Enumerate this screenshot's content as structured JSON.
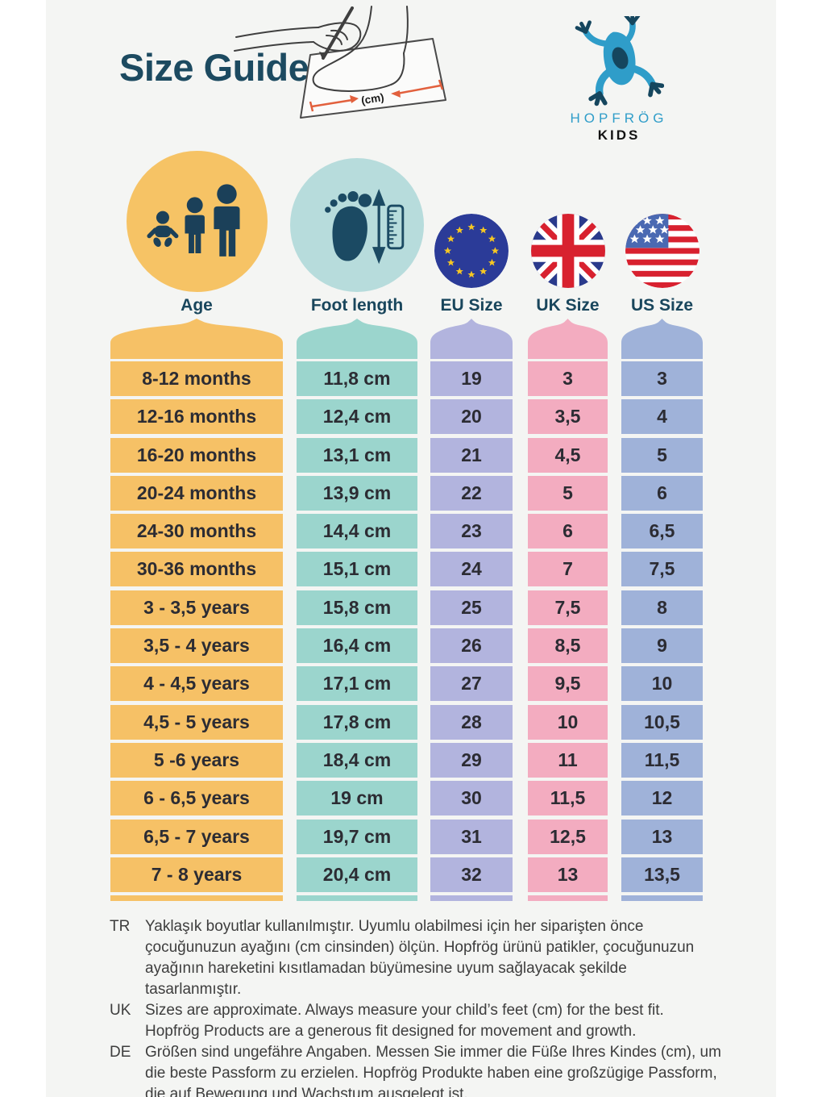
{
  "title": "Size Guide",
  "logo": {
    "brand": "HOPFRÖG",
    "sub": "KIDS"
  },
  "illustration": {
    "cm_label": "(cm)",
    "description": "hand drawing around a foot on paper to measure length in cm"
  },
  "theme": {
    "background": "#F4F5F3",
    "title_color": "#1C4A60",
    "label_color": "#19465C",
    "cell_text_color": "#2C2C33",
    "brand_blue": "#2F9DC9",
    "icon_dark": "#1B4059",
    "measure_arrow_orange": "#E2603D"
  },
  "columns": [
    {
      "key": "age",
      "label": "Age",
      "icon": "family-icon",
      "color": "#F6C166",
      "circle_color": "#F6C365"
    },
    {
      "key": "foot",
      "label": "Foot length",
      "icon": "foot-length-icon",
      "color": "#9BD5CD",
      "circle_color": "#B7DCDC"
    },
    {
      "key": "eu",
      "label": "EU Size",
      "icon": "eu-flag-icon",
      "color": "#B2B4DE"
    },
    {
      "key": "uk",
      "label": "UK Size",
      "icon": "uk-flag-icon",
      "color": "#F3ACC0"
    },
    {
      "key": "us",
      "label": "US Size",
      "icon": "us-flag-icon",
      "color": "#9FB2D9"
    }
  ],
  "rows": [
    {
      "age": "8-12 months",
      "foot": "11,8 cm",
      "eu": "19",
      "uk": "3",
      "us": "3"
    },
    {
      "age": "12-16 months",
      "foot": "12,4 cm",
      "eu": "20",
      "uk": "3,5",
      "us": "4"
    },
    {
      "age": "16-20 months",
      "foot": "13,1 cm",
      "eu": "21",
      "uk": "4,5",
      "us": "5"
    },
    {
      "age": "20-24 months",
      "foot": "13,9 cm",
      "eu": "22",
      "uk": "5",
      "us": "6"
    },
    {
      "age": "24-30 months",
      "foot": "14,4 cm",
      "eu": "23",
      "uk": "6",
      "us": "6,5"
    },
    {
      "age": "30-36 months",
      "foot": "15,1 cm",
      "eu": "24",
      "uk": "7",
      "us": "7,5"
    },
    {
      "age": "3 - 3,5 years",
      "foot": "15,8 cm",
      "eu": "25",
      "uk": "7,5",
      "us": "8"
    },
    {
      "age": "3,5 - 4 years",
      "foot": "16,4 cm",
      "eu": "26",
      "uk": "8,5",
      "us": "9"
    },
    {
      "age": "4 - 4,5 years",
      "foot": "17,1 cm",
      "eu": "27",
      "uk": "9,5",
      "us": "10"
    },
    {
      "age": "4,5 - 5 years",
      "foot": "17,8 cm",
      "eu": "28",
      "uk": "10",
      "us": "10,5"
    },
    {
      "age": "5 -6 years",
      "foot": "18,4 cm",
      "eu": "29",
      "uk": "11",
      "us": "11,5"
    },
    {
      "age": "6 - 6,5 years",
      "foot": "19 cm",
      "eu": "30",
      "uk": "11,5",
      "us": "12"
    },
    {
      "age": "6,5 - 7 years",
      "foot": "19,7 cm",
      "eu": "31",
      "uk": "12,5",
      "us": "13"
    },
    {
      "age": "7 - 8 years",
      "foot": "20,4 cm",
      "eu": "32",
      "uk": "13",
      "us": "13,5"
    }
  ],
  "notes": [
    {
      "lang": "TR",
      "text": "Yaklaşık boyutlar kullanılmıştır. Uyumlu olabilmesi için her siparişten önce çocuğunuzun ayağını (cm cinsinden) ölçün. Hopfrög ürünü patikler, çocuğunuzun ayağının hareketini kısıtlamadan büyümesine uyum sağlayacak şekilde tasarlanmıştır."
    },
    {
      "lang": "UK",
      "text": "Sizes are approximate. Always measure your child’s feet (cm) for the best fit. Hopfrög Products are a generous fit designed for movement and growth."
    },
    {
      "lang": "DE",
      "text": "Größen sind ungefähre Angaben. Messen Sie immer die Füße Ihres Kindes (cm), um die beste Passform zu erzielen. Hopfrög Produkte haben eine großzügige Passform, die auf Bewegung und Wachstum ausgelegt ist."
    }
  ]
}
